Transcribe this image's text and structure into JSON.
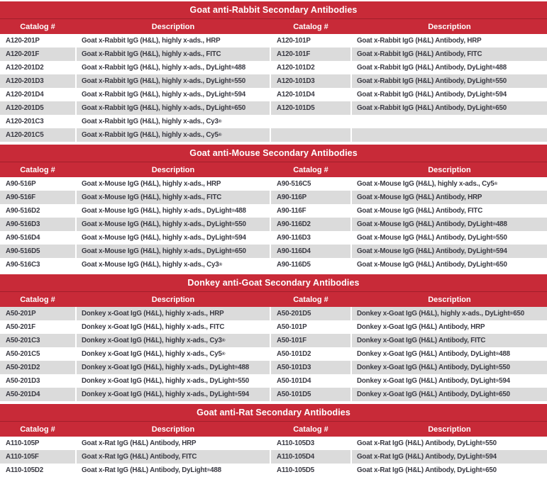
{
  "colors": {
    "banner_red": "#C82A38",
    "row_alt_gray": "#DBDBDB",
    "text_dark": "#3A3A43",
    "header_text": "#FFFFFF"
  },
  "columns": {
    "catalog_label": "Catalog #",
    "description_label": "Description"
  },
  "sections": [
    {
      "slug": "goat-anti-rabbit",
      "title": "Goat anti-Rabbit Secondary Antibodies",
      "first_row_gray": false,
      "rows": [
        {
          "cat1": "A120-201P",
          "desc1": "Goat x-Rabbit IgG (H&L), highly x-ads., HRP",
          "cat2": "A120-101P",
          "desc2": "Goat x-Rabbit IgG (H&L) Antibody, HRP"
        },
        {
          "cat1": "A120-201F",
          "desc1": "Goat x-Rabbit IgG (H&L), highly x-ads., FITC",
          "cat2": "A120-101F",
          "desc2": "Goat x-Rabbit IgG (H&L) Antibody, FITC"
        },
        {
          "cat1": "A120-201D2",
          "desc1": "Goat x-Rabbit IgG (H&L), highly x-ads., DyLight® 488",
          "cat2": "A120-101D2",
          "desc2": "Goat x-Rabbit IgG (H&L) Antibody, DyLight® 488"
        },
        {
          "cat1": "A120-201D3",
          "desc1": "Goat x-Rabbit IgG (H&L), highly x-ads., DyLight® 550",
          "cat2": "A120-101D3",
          "desc2": "Goat x-Rabbit IgG (H&L) Antibody, DyLight® 550"
        },
        {
          "cat1": "A120-201D4",
          "desc1": "Goat x-Rabbit IgG (H&L), highly x-ads., DyLight® 594",
          "cat2": "A120-101D4",
          "desc2": "Goat x-Rabbit IgG (H&L) Antibody, DyLight® 594"
        },
        {
          "cat1": "A120-201D5",
          "desc1": "Goat x-Rabbit IgG (H&L), highly x-ads., DyLight® 650",
          "cat2": "A120-101D5",
          "desc2": "Goat x-Rabbit IgG (H&L) Antibody, DyLight® 650"
        },
        {
          "cat1": "A120-201C3",
          "desc1": "Goat x-Rabbit IgG (H&L), highly x-ads., Cy3®",
          "cat2": "",
          "desc2": ""
        },
        {
          "cat1": "A120-201C5",
          "desc1": "Goat x-Rabbit IgG (H&L), highly x-ads., Cy5®",
          "cat2": "",
          "desc2": ""
        }
      ]
    },
    {
      "slug": "goat-anti-mouse",
      "title": "Goat anti-Mouse Secondary Antibodies",
      "first_row_gray": false,
      "rows": [
        {
          "cat1": "A90-516P",
          "desc1": "Goat x-Mouse IgG (H&L), highly x-ads., HRP",
          "cat2": "A90-516C5",
          "desc2": "Goat x-Mouse IgG (H&L), highly x-ads., Cy5®"
        },
        {
          "cat1": "A90-516F",
          "desc1": "Goat x-Mouse IgG (H&L), highly x-ads., FITC",
          "cat2": "A90-116P",
          "desc2": "Goat x-Mouse IgG (H&L) Antibody, HRP"
        },
        {
          "cat1": "A90-516D2",
          "desc1": "Goat x-Mouse IgG (H&L), highly x-ads., DyLight® 488",
          "cat2": "A90-116F",
          "desc2": "Goat x-Mouse IgG (H&L) Antibody, FITC"
        },
        {
          "cat1": "A90-516D3",
          "desc1": "Goat x-Mouse IgG (H&L), highly x-ads., DyLight® 550",
          "cat2": "A90-116D2",
          "desc2": "Goat x-Mouse IgG (H&L) Antibody, DyLight® 488"
        },
        {
          "cat1": "A90-516D4",
          "desc1": "Goat x-Mouse IgG (H&L), highly x-ads., DyLight® 594",
          "cat2": "A90-116D3",
          "desc2": "Goat x-Mouse IgG (H&L) Antibody, DyLight® 550"
        },
        {
          "cat1": "A90-516D5",
          "desc1": "Goat x-Mouse IgG (H&L), highly x-ads., DyLight® 650",
          "cat2": "A90-116D4",
          "desc2": "Goat x-Mouse IgG (H&L) Antibody, DyLight® 594"
        },
        {
          "cat1": "A90-516C3",
          "desc1": "Goat x-Mouse IgG (H&L), highly x-ads., Cy3®",
          "cat2": "A90-116D5",
          "desc2": "Goat x-Mouse IgG (H&L) Antibody, DyLight® 650"
        }
      ]
    },
    {
      "slug": "donkey-anti-goat",
      "title": "Donkey anti-Goat Secondary Antibodies",
      "first_row_gray": true,
      "rows": [
        {
          "cat1": "A50-201P",
          "desc1": "Donkey x-Goat IgG (H&L), highly x-ads., HRP",
          "cat2": "A50-201D5",
          "desc2": "Donkey x-Goat IgG (H&L), highly x-ads., DyLight® 650"
        },
        {
          "cat1": "A50-201F",
          "desc1": "Donkey x-Goat IgG (H&L), highly x-ads., FITC",
          "cat2": "A50-101P",
          "desc2": "Donkey x-Goat IgG (H&L) Antibody, HRP"
        },
        {
          "cat1": "A50-201C3",
          "desc1": "Donkey x-Goat IgG (H&L), highly x-ads., Cy3®",
          "cat2": "A50-101F",
          "desc2": "Donkey x-Goat IgG (H&L) Antibody, FITC"
        },
        {
          "cat1": "A50-201C5",
          "desc1": "Donkey x-Goat IgG (H&L), highly x-ads., Cy5®",
          "cat2": "A50-101D2",
          "desc2": "Donkey x-Goat IgG (H&L) Antibody, DyLight® 488"
        },
        {
          "cat1": "A50-201D2",
          "desc1": "Donkey x-Goat IgG (H&L), highly x-ads., DyLight® 488",
          "cat2": "A50-101D3",
          "desc2": "Donkey x-Goat IgG (H&L) Antibody, DyLight® 550"
        },
        {
          "cat1": "A50-201D3",
          "desc1": "Donkey x-Goat IgG (H&L), highly x-ads., DyLight® 550",
          "cat2": "A50-101D4",
          "desc2": "Donkey x-Goat IgG (H&L) Antibody, DyLight® 594"
        },
        {
          "cat1": "A50-201D4",
          "desc1": "Donkey x-Goat IgG (H&L), highly x-ads., DyLight® 594",
          "cat2": "A50-101D5",
          "desc2": "Donkey x-Goat IgG (H&L) Antibody, DyLight® 650"
        }
      ]
    },
    {
      "slug": "goat-anti-rat",
      "title": "Goat anti-Rat Secondary Antibodies",
      "first_row_gray": false,
      "rows": [
        {
          "cat1": "A110-105P",
          "desc1": "Goat x-Rat IgG (H&L) Antibody, HRP",
          "cat2": "A110-105D3",
          "desc2": "Goat x-Rat IgG (H&L) Antibody, DyLight® 550"
        },
        {
          "cat1": "A110-105F",
          "desc1": "Goat x-Rat IgG (H&L) Antibody, FITC",
          "cat2": "A110-105D4",
          "desc2": "Goat x-Rat IgG (H&L) Antibody, DyLight® 594"
        },
        {
          "cat1": "A110-105D2",
          "desc1": "Goat x-Rat IgG (H&L) Antibody, DyLight® 488",
          "cat2": "A110-105D5",
          "desc2": "Goat x-Rat IgG (H&L) Antibody, DyLight® 650"
        }
      ]
    }
  ]
}
